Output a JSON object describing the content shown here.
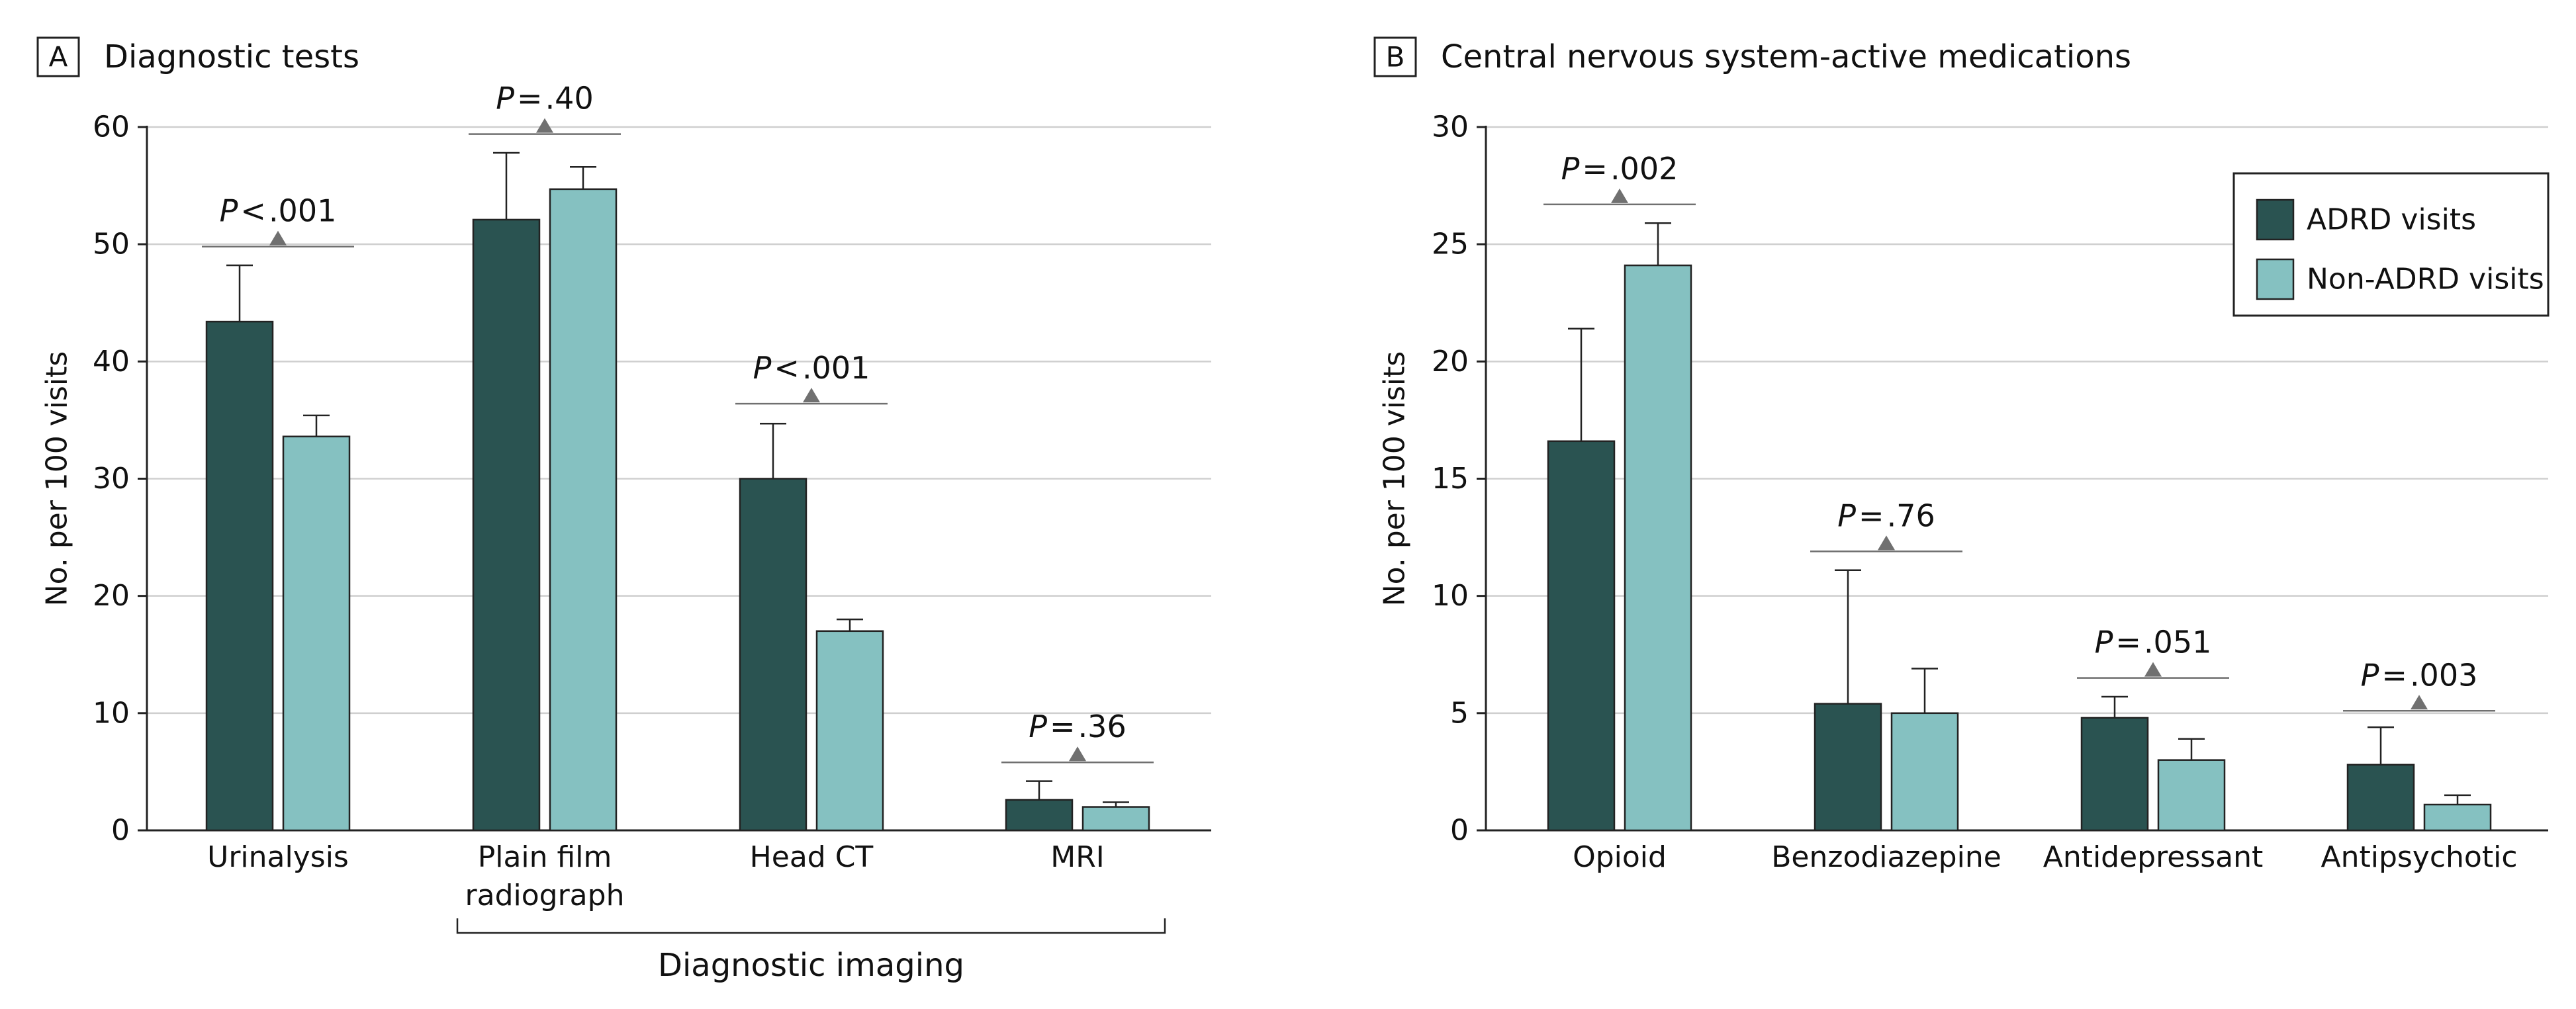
{
  "colors": {
    "adrd": "#2a5351",
    "non_adrd": "#85c1c1",
    "grid": "#cfcfcf",
    "axis": "#222222",
    "annotation": "#707070",
    "text": "#111111"
  },
  "chart_data": [
    {
      "panel": "A",
      "type": "bar",
      "title": "Diagnostic tests",
      "xlabel": "",
      "ylabel": "No. per 100 visits",
      "ylim": [
        0,
        60
      ],
      "yticks": [
        0,
        10,
        20,
        30,
        40,
        50,
        60
      ],
      "grid": true,
      "categories": [
        "Urinalysis",
        "Plain film\nradiograph",
        "Head CT",
        "MRI"
      ],
      "series": [
        {
          "name": "ADRD visits",
          "color": "#2a5351",
          "values": [
            43.4,
            52.1,
            30.0,
            2.6
          ],
          "error_upper": [
            48.2,
            57.8,
            34.7,
            4.2
          ]
        },
        {
          "name": "Non-ADRD visits",
          "color": "#85c1c1",
          "values": [
            33.6,
            54.7,
            17.0,
            2.0
          ],
          "error_upper": [
            35.4,
            56.6,
            18.0,
            2.4
          ]
        }
      ],
      "annotations": [
        {
          "category_index": 0,
          "text": ".001",
          "y": 49.8,
          "relation": "<"
        },
        {
          "category_index": 1,
          "text": ".40",
          "y": 59.4,
          "relation": "="
        },
        {
          "category_index": 2,
          "text": ".001",
          "y": 36.4,
          "relation": "<"
        },
        {
          "category_index": 3,
          "text": ".36",
          "y": 5.8,
          "relation": "="
        }
      ],
      "group_bracket": {
        "label": "Diagnostic imaging",
        "from_category": 1,
        "to_category": 3
      }
    },
    {
      "panel": "B",
      "type": "bar",
      "title": "Central nervous system-active medications",
      "xlabel": "",
      "ylabel": "No. per 100 visits",
      "ylim": [
        0,
        30
      ],
      "yticks": [
        0,
        5,
        10,
        15,
        20,
        25,
        30
      ],
      "grid": true,
      "legend": {
        "placement": "top-right",
        "entries": [
          "ADRD visits",
          "Non-ADRD visits"
        ]
      },
      "categories": [
        "Opioid",
        "Benzodiazepine",
        "Antidepressant",
        "Antipsychotic"
      ],
      "series": [
        {
          "name": "ADRD visits",
          "color": "#2a5351",
          "values": [
            16.6,
            5.4,
            4.8,
            2.8
          ],
          "error_upper": [
            21.4,
            11.1,
            5.7,
            4.4
          ]
        },
        {
          "name": "Non-ADRD visits",
          "color": "#85c1c1",
          "values": [
            24.1,
            5.0,
            3.0,
            1.1
          ],
          "error_upper": [
            25.9,
            6.9,
            3.9,
            1.5
          ]
        }
      ],
      "annotations": [
        {
          "category_index": 0,
          "text": ".002",
          "y": 26.7,
          "relation": "="
        },
        {
          "category_index": 1,
          "text": ".76",
          "y": 11.9,
          "relation": "="
        },
        {
          "category_index": 2,
          "text": ".051",
          "y": 6.5,
          "relation": "="
        },
        {
          "category_index": 3,
          "text": ".003",
          "y": 5.1,
          "relation": "="
        }
      ]
    }
  ],
  "p_prefix": "P"
}
